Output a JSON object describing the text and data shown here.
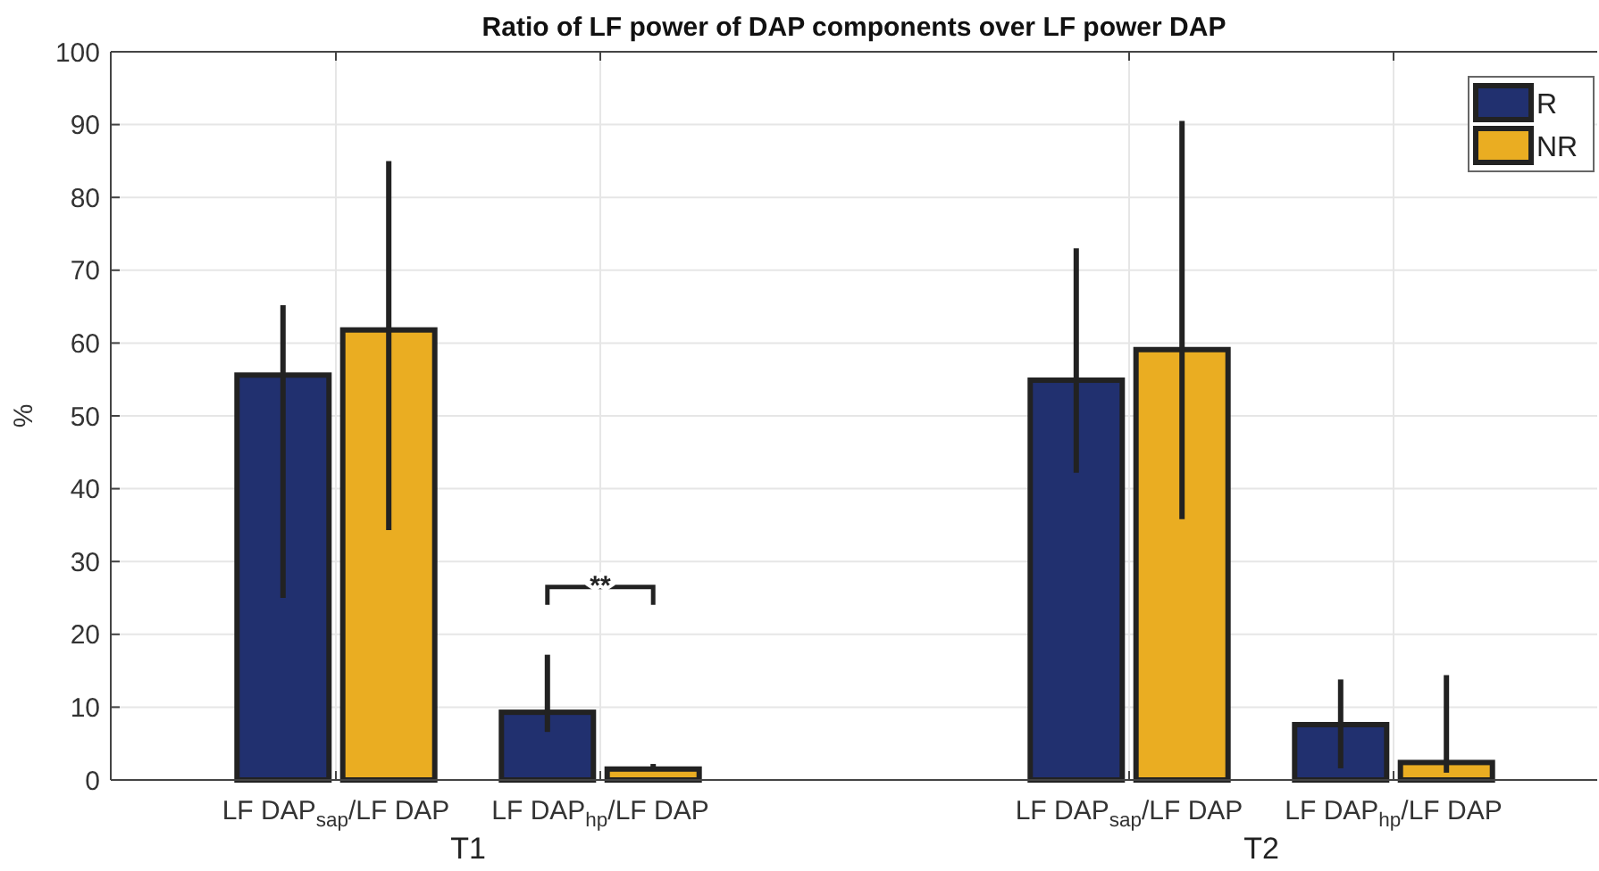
{
  "chart_data": {
    "type": "bar",
    "title": "Ratio of LF power of DAP components over LF power DAP",
    "ylabel": "%",
    "categories": [
      "LF DAP$_{sap}$/LF DAP",
      "LF DAP$_{hp}$/LF DAP",
      null,
      "LF DAP$_{sap}$/LF DAP",
      "LF DAP$_{hp}$/LF DAP"
    ],
    "series": [
      {
        "name": "R",
        "color": "#21306f",
        "values": [
          55.6,
          9.3,
          null,
          54.9,
          7.6
        ],
        "errors": [
          [
            25,
            65.2
          ],
          [
            6.6,
            17.2
          ],
          null,
          [
            42.2,
            73
          ],
          [
            1.6,
            13.8
          ]
        ]
      },
      {
        "name": "NR",
        "color": "#eaad22",
        "values": [
          61.8,
          1.5,
          null,
          59.1,
          2.4
        ],
        "errors": [
          [
            34.3,
            85
          ],
          [
            1.5,
            2.2
          ],
          null,
          [
            35.8,
            90.5
          ],
          [
            1,
            14.4
          ]
        ]
      }
    ],
    "annotations": [
      "**",
      "T1",
      "T2"
    ],
    "ylim": [
      0,
      100
    ],
    "yticks": [
      0,
      10,
      20,
      30,
      40,
      50,
      60,
      70,
      80,
      90,
      100
    ],
    "grid": true,
    "legend": "top right"
  }
}
